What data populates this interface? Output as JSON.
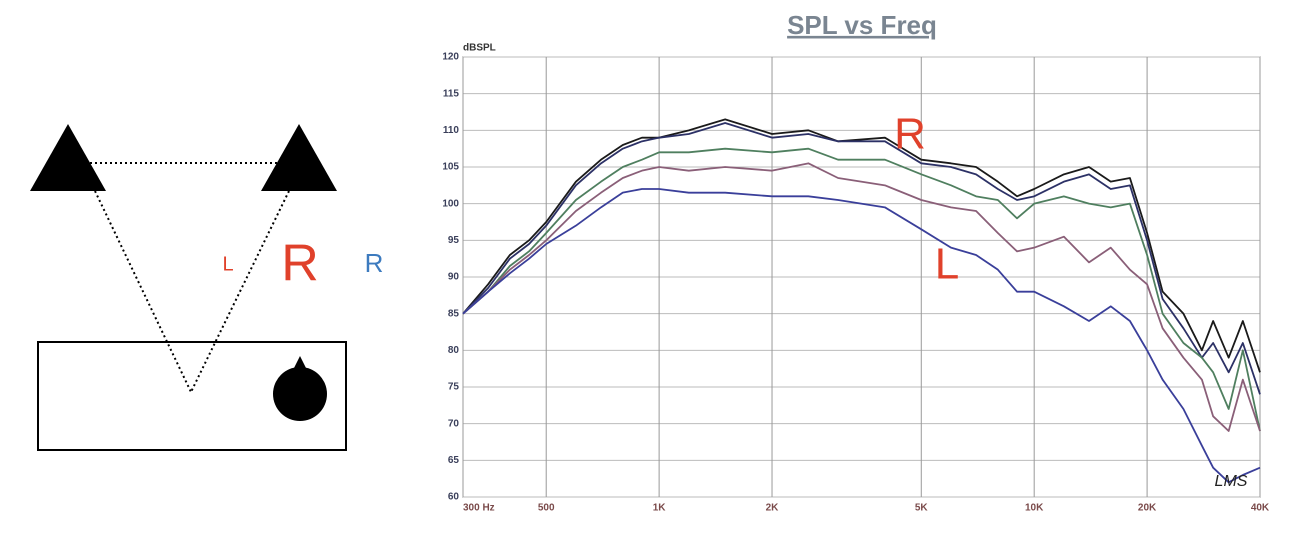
{
  "diagram": {
    "labels": [
      "L",
      "R",
      "R"
    ]
  },
  "chart_data": {
    "type": "line",
    "title": "SPL vs Freq",
    "y_label": "dBSPL",
    "log_x": true,
    "grid": true,
    "annotations": [
      "R",
      "L"
    ],
    "watermark": "LMS",
    "x": [
      300,
      350,
      400,
      450,
      500,
      600,
      700,
      800,
      900,
      1000,
      1200,
      1500,
      2000,
      2500,
      3000,
      4000,
      5000,
      6000,
      7000,
      8000,
      9000,
      10000,
      12000,
      14000,
      16000,
      18000,
      20000,
      22000,
      25000,
      28000,
      30000,
      33000,
      36000,
      40000
    ],
    "series": [
      {
        "color": "#1a1a1a",
        "values": [
          85,
          89,
          93,
          95,
          97.5,
          103,
          106,
          108,
          109,
          109,
          110,
          111.5,
          109.5,
          110,
          108.5,
          109,
          106,
          105.5,
          105,
          103,
          101,
          102,
          104,
          105,
          103,
          103.5,
          96,
          88,
          85,
          80,
          84,
          79,
          84,
          77
        ]
      },
      {
        "color": "#2c3166",
        "values": [
          85,
          88.5,
          92.5,
          94.5,
          97,
          102.5,
          105.5,
          107.5,
          108.5,
          109,
          109.5,
          111,
          109,
          109.5,
          108.5,
          108.5,
          105.5,
          105,
          104,
          102,
          100.5,
          101,
          103,
          104,
          102,
          102.5,
          95,
          87,
          83,
          79,
          81,
          77,
          81,
          74
        ]
      },
      {
        "color": "#4f7f5f",
        "values": [
          85,
          88,
          91.5,
          93.5,
          96,
          100.5,
          103,
          105,
          106,
          107,
          107,
          107.5,
          107,
          107.5,
          106,
          106,
          104,
          102.5,
          101,
          100.5,
          98,
          100,
          101,
          100,
          99.5,
          100,
          93,
          85,
          81,
          79,
          77,
          72,
          80,
          69
        ]
      },
      {
        "color": "#8a5f78",
        "values": [
          85,
          88,
          91,
          93,
          95,
          99,
          101.5,
          103.5,
          104.5,
          105,
          104.5,
          105,
          104.5,
          105.5,
          103.5,
          102.5,
          100.5,
          99.5,
          99,
          96,
          93.5,
          94,
          95.5,
          92,
          94,
          91,
          89,
          83,
          79,
          76,
          71,
          69,
          76,
          69
        ]
      },
      {
        "color": "#3a3f9a",
        "values": [
          85,
          88,
          90.5,
          92.5,
          94.5,
          97,
          99.5,
          101.5,
          102,
          102,
          101.5,
          101.5,
          101,
          101,
          100.5,
          99.5,
          96.5,
          94,
          93,
          91,
          88,
          88,
          86,
          84,
          86,
          84,
          80,
          76,
          72,
          67,
          64,
          62,
          63,
          64
        ]
      }
    ],
    "xlim": [
      300,
      40000
    ],
    "xticks": [
      {
        "value": 300,
        "label": "300 Hz"
      },
      500,
      {
        "value": 1000,
        "label": "1K"
      },
      {
        "value": 2000,
        "label": "2K"
      },
      {
        "value": 5000,
        "label": "5K"
      },
      {
        "value": 10000,
        "label": "10K"
      },
      {
        "value": 20000,
        "label": "20K"
      },
      {
        "value": 40000,
        "label": "40K"
      }
    ],
    "ylim": [
      60,
      120
    ],
    "yticks": [
      60,
      65,
      70,
      75,
      80,
      85,
      90,
      95,
      100,
      105,
      110,
      115,
      120
    ]
  }
}
